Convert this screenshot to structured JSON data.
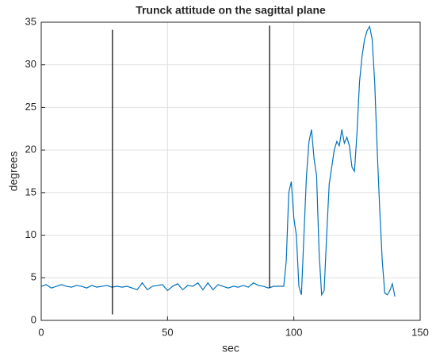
{
  "chart_data": {
    "type": "line",
    "title": "Trunck attitude on the sagittal plane",
    "x_label": "sec",
    "y_label": "degrees",
    "xlim": [
      0,
      150
    ],
    "xticks": [
      0,
      50,
      100,
      150
    ],
    "ylim": [
      0,
      35
    ],
    "yticks": [
      0,
      5,
      10,
      15,
      20,
      25,
      30,
      35
    ],
    "grid": true,
    "series": [
      {
        "color": "#0072bd",
        "x": [
          0,
          2,
          4,
          6,
          8,
          10,
          12,
          14,
          16,
          18,
          20,
          22,
          24,
          26,
          28,
          30,
          32,
          34,
          36,
          38,
          40,
          42,
          44,
          46,
          48,
          50,
          52,
          54,
          56,
          58,
          60,
          62,
          64,
          66,
          68,
          70,
          72,
          74,
          76,
          78,
          80,
          82,
          84,
          86,
          88,
          90,
          92,
          94,
          96,
          97,
          98,
          99,
          100,
          101,
          102,
          103,
          104,
          105,
          106,
          107,
          108,
          109,
          110,
          111,
          112,
          113,
          114,
          115,
          116,
          117,
          118,
          119,
          120,
          121,
          122,
          123,
          124,
          125,
          126,
          127,
          128,
          129,
          130,
          131,
          132,
          133,
          134,
          135,
          136,
          137,
          138,
          139,
          140
        ],
        "values": [
          4.0,
          4.2,
          3.8,
          4.0,
          4.2,
          4.0,
          3.9,
          4.1,
          4.0,
          3.8,
          4.1,
          3.9,
          4.0,
          4.1,
          3.9,
          4.0,
          3.9,
          4.0,
          3.8,
          3.6,
          4.4,
          3.6,
          4.0,
          4.1,
          4.2,
          3.5,
          4.0,
          4.3,
          3.6,
          4.1,
          4.0,
          4.4,
          3.6,
          4.4,
          3.6,
          4.2,
          4.0,
          3.8,
          4.0,
          3.9,
          4.1,
          3.9,
          4.4,
          4.1,
          4.0,
          3.8,
          4.0,
          4.0,
          4.0,
          7,
          15,
          16.3,
          12,
          10,
          4,
          3,
          10,
          17,
          21,
          22.4,
          19,
          17,
          8,
          3,
          3.5,
          10,
          16,
          18,
          20,
          21,
          20.5,
          22.4,
          20.8,
          21.5,
          20.5,
          18,
          17.5,
          22,
          28,
          31,
          33,
          34,
          34.5,
          33,
          28,
          20,
          13,
          7,
          3.2,
          3,
          3.5,
          4.3,
          2.8
        ]
      },
      {
        "color": "#000000",
        "x": [
          28.2,
          28.2
        ],
        "values": [
          0.7,
          34.1
        ]
      },
      {
        "color": "#000000",
        "x": [
          90.4,
          90.4
        ],
        "values": [
          3.8,
          34.6
        ]
      }
    ]
  }
}
